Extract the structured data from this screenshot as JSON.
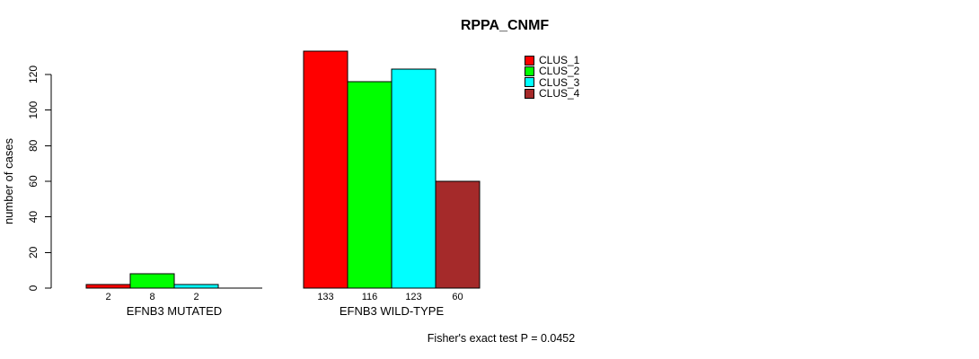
{
  "page": {
    "background_color": "#FFFFFF",
    "text_color": "#000000"
  },
  "chart_data": {
    "type": "bar",
    "title": "RPPA_CNMF",
    "xlabel": "",
    "ylabel": "number of cases",
    "ylim": [
      0,
      120
    ],
    "yticks": [
      "0",
      "20",
      "40",
      "60",
      "80",
      "100",
      "120"
    ],
    "grid": false,
    "axis_color": "#000000",
    "categories": [
      "EFNB3 MUTATED",
      "EFNB3 WILD-TYPE"
    ],
    "series": [
      {
        "name": "CLUS_1",
        "color": "#FF0000",
        "values": [
          2,
          133
        ]
      },
      {
        "name": "CLUS_2",
        "color": "#00FF00",
        "values": [
          8,
          116
        ]
      },
      {
        "name": "CLUS_3",
        "color": "#00FFFF",
        "values": [
          2,
          123
        ]
      },
      {
        "name": "CLUS_4",
        "color": "#A52A2A",
        "values": [
          0,
          60
        ]
      }
    ],
    "value_labels": [
      [
        "2",
        "8",
        "2"
      ],
      [
        "133",
        "116",
        "123",
        "60"
      ]
    ],
    "legend_position": "top-right",
    "annotation": "Fisher's exact test P = 0.0452"
  }
}
